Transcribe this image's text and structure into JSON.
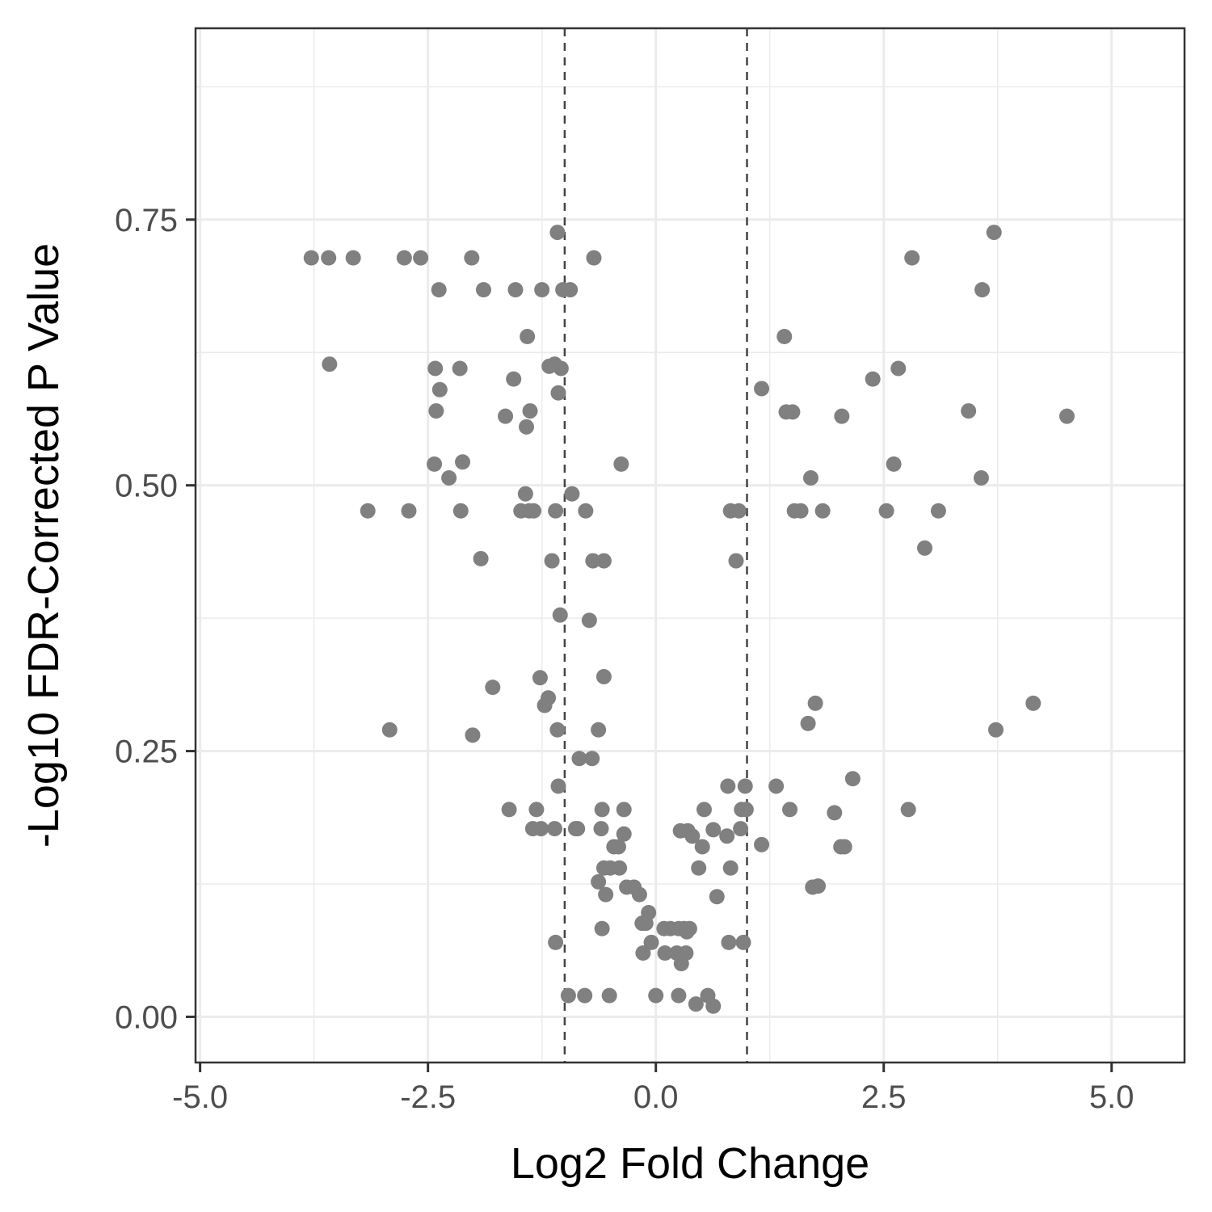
{
  "chart_data": {
    "type": "scatter",
    "xlabel": "Log2 Fold Change",
    "ylabel": "-Log10 FDR-Corrected P Value",
    "xlim": [
      -5.05,
      5.8
    ],
    "ylim": [
      -0.043,
      0.93
    ],
    "x_ticks": [
      -5.0,
      -2.5,
      0.0,
      2.5,
      5.0
    ],
    "x_tick_labels": [
      "-5.0",
      "-2.5",
      "0.0",
      "2.5",
      "5.0"
    ],
    "y_ticks": [
      0.0,
      0.25,
      0.5,
      0.75
    ],
    "y_tick_labels": [
      "0.00",
      "0.25",
      "0.50",
      "0.75"
    ],
    "grid": true,
    "reference_lines": [
      -1,
      1
    ],
    "point_color": "#808080",
    "ref_line_color": "#444444",
    "points": [
      [
        -3.78,
        0.714
      ],
      [
        -3.59,
        0.714
      ],
      [
        -3.32,
        0.714
      ],
      [
        -2.76,
        0.714
      ],
      [
        -2.58,
        0.714
      ],
      [
        -2.02,
        0.714
      ],
      [
        -1.08,
        0.738
      ],
      [
        -0.68,
        0.714
      ],
      [
        -2.38,
        0.684
      ],
      [
        -1.89,
        0.684
      ],
      [
        -1.54,
        0.684
      ],
      [
        -1.25,
        0.684
      ],
      [
        -1.02,
        0.684
      ],
      [
        -0.94,
        0.684
      ],
      [
        -1.41,
        0.64
      ],
      [
        -3.58,
        0.614
      ],
      [
        -2.42,
        0.61
      ],
      [
        -2.15,
        0.61
      ],
      [
        -1.17,
        0.612
      ],
      [
        -1.11,
        0.614
      ],
      [
        -1.04,
        0.61
      ],
      [
        -1.56,
        0.6
      ],
      [
        -2.37,
        0.59
      ],
      [
        -1.07,
        0.587
      ],
      [
        -2.41,
        0.57
      ],
      [
        -1.38,
        0.57
      ],
      [
        -1.65,
        0.565
      ],
      [
        -1.42,
        0.555
      ],
      [
        -2.43,
        0.52
      ],
      [
        -2.12,
        0.522
      ],
      [
        -2.27,
        0.507
      ],
      [
        -0.38,
        0.52
      ],
      [
        -1.43,
        0.492
      ],
      [
        -0.92,
        0.492
      ],
      [
        -3.16,
        0.476
      ],
      [
        -2.71,
        0.476
      ],
      [
        -2.14,
        0.476
      ],
      [
        -1.48,
        0.476
      ],
      [
        -1.39,
        0.476
      ],
      [
        -1.34,
        0.476
      ],
      [
        -1.1,
        0.476
      ],
      [
        -0.77,
        0.476
      ],
      [
        -1.92,
        0.431
      ],
      [
        -1.14,
        0.429
      ],
      [
        -0.69,
        0.429
      ],
      [
        -0.57,
        0.429
      ],
      [
        -1.05,
        0.378
      ],
      [
        -0.73,
        0.373
      ],
      [
        -1.27,
        0.319
      ],
      [
        -0.57,
        0.32
      ],
      [
        -1.79,
        0.31
      ],
      [
        -1.18,
        0.3
      ],
      [
        -1.22,
        0.293
      ],
      [
        -2.92,
        0.27
      ],
      [
        -2.01,
        0.265
      ],
      [
        -1.08,
        0.27
      ],
      [
        -0.63,
        0.27
      ],
      [
        -0.84,
        0.243
      ],
      [
        -0.7,
        0.243
      ],
      [
        -1.07,
        0.217
      ],
      [
        -1.61,
        0.195
      ],
      [
        -1.31,
        0.195
      ],
      [
        -0.59,
        0.195
      ],
      [
        -0.35,
        0.195
      ],
      [
        -1.35,
        0.177
      ],
      [
        -1.26,
        0.177
      ],
      [
        -1.11,
        0.177
      ],
      [
        -0.88,
        0.177
      ],
      [
        -0.86,
        0.177
      ],
      [
        -0.6,
        0.177
      ],
      [
        -0.35,
        0.172
      ],
      [
        -0.46,
        0.16
      ],
      [
        -0.41,
        0.16
      ],
      [
        -0.57,
        0.14
      ],
      [
        -0.5,
        0.14
      ],
      [
        -0.4,
        0.14
      ],
      [
        -0.63,
        0.127
      ],
      [
        -0.55,
        0.115
      ],
      [
        -0.32,
        0.122
      ],
      [
        -0.24,
        0.122
      ],
      [
        -0.18,
        0.115
      ],
      [
        -0.08,
        0.098
      ],
      [
        -0.15,
        0.088
      ],
      [
        -0.11,
        0.088
      ],
      [
        -0.59,
        0.083
      ],
      [
        -1.1,
        0.07
      ],
      [
        -0.05,
        0.07
      ],
      [
        -0.14,
        0.06
      ],
      [
        0.09,
        0.083
      ],
      [
        0.16,
        0.083
      ],
      [
        0.25,
        0.083
      ],
      [
        0.31,
        0.083
      ],
      [
        0.37,
        0.083
      ],
      [
        0.34,
        0.08
      ],
      [
        0.1,
        0.06
      ],
      [
        0.23,
        0.06
      ],
      [
        0.33,
        0.06
      ],
      [
        0.28,
        0.05
      ],
      [
        0.27,
        0.175
      ],
      [
        0.35,
        0.175
      ],
      [
        0.4,
        0.17
      ],
      [
        0.63,
        0.176
      ],
      [
        0.78,
        0.17
      ],
      [
        0.53,
        0.195
      ],
      [
        0.51,
        0.16
      ],
      [
        0.47,
        0.14
      ],
      [
        0.67,
        0.113
      ],
      [
        0.79,
        0.217
      ],
      [
        0.98,
        0.217
      ],
      [
        1.32,
        0.217
      ],
      [
        2.16,
        0.224
      ],
      [
        0.94,
        0.195
      ],
      [
        0.99,
        0.195
      ],
      [
        1.47,
        0.195
      ],
      [
        1.96,
        0.192
      ],
      [
        2.77,
        0.195
      ],
      [
        0.93,
        0.177
      ],
      [
        1.16,
        0.162
      ],
      [
        0.82,
        0.14
      ],
      [
        2.03,
        0.16
      ],
      [
        2.07,
        0.16
      ],
      [
        1.72,
        0.122
      ],
      [
        1.78,
        0.123
      ],
      [
        0.8,
        0.07
      ],
      [
        0.96,
        0.07
      ],
      [
        -0.96,
        0.02
      ],
      [
        -0.78,
        0.02
      ],
      [
        -0.51,
        0.02
      ],
      [
        0.0,
        0.02
      ],
      [
        0.25,
        0.02
      ],
      [
        0.44,
        0.012
      ],
      [
        0.57,
        0.02
      ],
      [
        0.63,
        0.01
      ],
      [
        0.82,
        0.476
      ],
      [
        0.91,
        0.476
      ],
      [
        1.52,
        0.476
      ],
      [
        1.59,
        0.476
      ],
      [
        1.83,
        0.476
      ],
      [
        2.53,
        0.476
      ],
      [
        3.1,
        0.476
      ],
      [
        0.88,
        0.429
      ],
      [
        2.95,
        0.441
      ],
      [
        1.7,
        0.507
      ],
      [
        3.57,
        0.507
      ],
      [
        2.61,
        0.52
      ],
      [
        2.04,
        0.565
      ],
      [
        1.43,
        0.569
      ],
      [
        1.5,
        0.569
      ],
      [
        3.43,
        0.57
      ],
      [
        4.51,
        0.565
      ],
      [
        1.16,
        0.591
      ],
      [
        2.38,
        0.6
      ],
      [
        2.66,
        0.61
      ],
      [
        1.41,
        0.64
      ],
      [
        3.58,
        0.684
      ],
      [
        2.81,
        0.714
      ],
      [
        3.71,
        0.738
      ],
      [
        1.67,
        0.276
      ],
      [
        1.75,
        0.295
      ],
      [
        3.73,
        0.27
      ],
      [
        4.14,
        0.295
      ]
    ]
  }
}
